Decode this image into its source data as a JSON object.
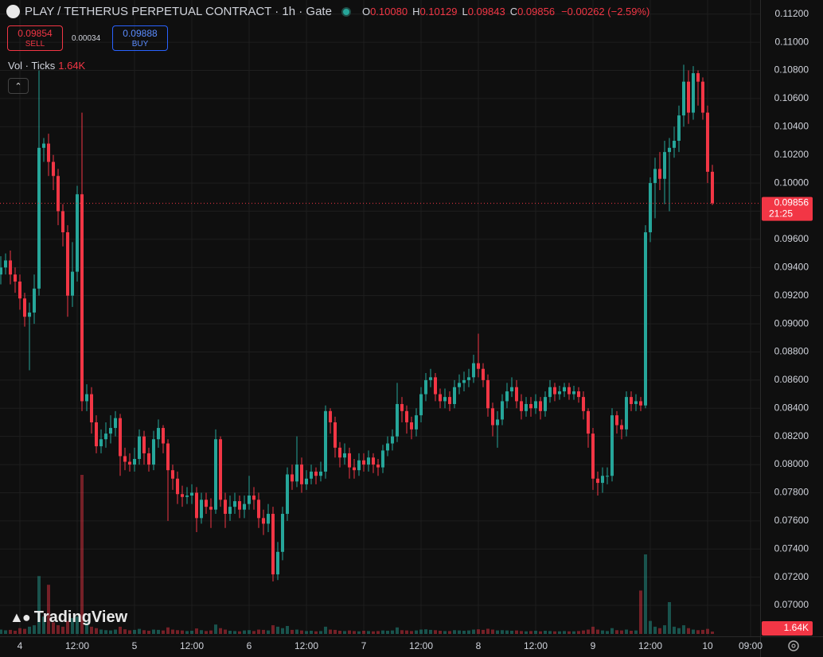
{
  "header": {
    "symbol": "PLAY / TETHERUS PERPETUAL CONTRACT · 1h · Gate",
    "ohlc": [
      {
        "key": "O",
        "value": "0.10080"
      },
      {
        "key": "H",
        "value": "0.10129"
      },
      {
        "key": "L",
        "value": "0.09843"
      },
      {
        "key": "C",
        "value": "0.09856"
      }
    ],
    "change": "−0.00262 (−2.59%)"
  },
  "trade": {
    "sell_price": "0.09854",
    "sell": "SELL",
    "spread": "0.00034",
    "buy_price": "0.09888",
    "buy": "BUY"
  },
  "volume_legend": {
    "name": "Vol · Ticks",
    "value": "1.64K"
  },
  "watermark": "TradingView",
  "chart_data": {
    "type": "candlestick",
    "categories": [
      null,
      null,
      null,
      null,
      "4",
      null,
      null,
      null,
      null,
      null,
      null,
      null,
      null,
      null,
      null,
      null,
      "12:00",
      null,
      null,
      null,
      null,
      null,
      null,
      null,
      null,
      null,
      null,
      null,
      "5",
      null,
      null,
      null,
      null,
      null,
      null,
      null,
      null,
      null,
      null,
      null,
      "12:00",
      null,
      null,
      null,
      null,
      null,
      null,
      null,
      null,
      null,
      null,
      null,
      "6",
      null,
      null,
      null,
      null,
      null,
      null,
      null,
      null,
      null,
      null,
      null,
      "12:00",
      null,
      null,
      null,
      null,
      null,
      null,
      null,
      null,
      null,
      null,
      null,
      "7",
      null,
      null,
      null,
      null,
      null,
      null,
      null,
      null,
      null,
      null,
      null,
      "12:00",
      null,
      null,
      null,
      null,
      null,
      null,
      null,
      null,
      null,
      null,
      null,
      "8",
      null,
      null,
      null,
      null,
      null,
      null,
      null,
      null,
      null,
      null,
      null,
      "12:00",
      null,
      null,
      null,
      null,
      null,
      null,
      null,
      null,
      null,
      null,
      null,
      "9",
      null,
      null,
      null,
      null,
      null,
      null,
      null,
      null,
      null,
      null,
      null,
      "12:00",
      null,
      null,
      null,
      null,
      null,
      null,
      null,
      null,
      null,
      null,
      null,
      "10",
      null,
      null,
      null,
      null,
      null,
      null,
      null,
      null,
      "09:00"
    ],
    "open": [
      0.0935,
      0.094,
      0.0945,
      0.0935,
      0.093,
      0.0918,
      0.0905,
      0.0908,
      0.0925,
      0.1025,
      0.1028,
      0.1015,
      0.1005,
      0.098,
      0.0965,
      0.092,
      0.0937,
      0.0992,
      0.0845,
      0.085,
      0.083,
      0.0813,
      0.0818,
      0.0822,
      0.0826,
      0.0833,
      0.0806,
      0.0802,
      0.08,
      0.0804,
      0.082,
      0.0808,
      0.08,
      0.0818,
      0.0826,
      0.0815,
      0.0796,
      0.079,
      0.0779,
      0.0777,
      0.0778,
      0.078,
      0.0762,
      0.0775,
      0.077,
      0.0768,
      0.0818,
      0.0775,
      0.0765,
      0.077,
      0.0774,
      0.0768,
      0.0772,
      0.0778,
      0.0775,
      0.0762,
      0.0758,
      0.0765,
      0.0722,
      0.0738,
      0.0765,
      0.0793,
      0.0788,
      0.08,
      0.0786,
      0.079,
      0.0795,
      0.0792,
      0.0795,
      0.0838,
      0.083,
      0.0812,
      0.0805,
      0.0808,
      0.0798,
      0.0796,
      0.0803,
      0.08,
      0.0805,
      0.08,
      0.0798,
      0.081,
      0.0815,
      0.082,
      0.0843,
      0.0838,
      0.083,
      0.0825,
      0.0835,
      0.085,
      0.086,
      0.0862,
      0.085,
      0.0845,
      0.0848,
      0.0843,
      0.0855,
      0.0858,
      0.086,
      0.0862,
      0.0872,
      0.0868,
      0.086,
      0.084,
      0.0828,
      0.0832,
      0.0845,
      0.0852,
      0.0855,
      0.0845,
      0.0838,
      0.0843,
      0.084,
      0.0845,
      0.0838,
      0.0848,
      0.0855,
      0.085,
      0.0852,
      0.0855,
      0.085,
      0.0852,
      0.0848,
      0.0838,
      0.0822,
      0.079,
      0.0787,
      0.0792,
      0.0792,
      0.0835,
      0.0828,
      0.0825,
      0.0848,
      0.0843,
      0.0845,
      0.0842,
      0.0965,
      0.1,
      0.101,
      0.1003,
      0.1022,
      0.1025,
      0.103,
      0.1048,
      0.1072,
      0.105,
      0.1078,
      0.1072,
      0.105,
      0.1008,
      null,
      null,
      null,
      null,
      null,
      null,
      null,
      null
    ],
    "high": [
      0.0948,
      0.095,
      0.0952,
      0.094,
      0.0935,
      0.0922,
      0.0915,
      0.0935,
      0.108,
      0.1032,
      0.1035,
      0.102,
      0.101,
      0.0985,
      0.097,
      0.0958,
      0.0998,
      0.105,
      0.0857,
      0.0855,
      0.0835,
      0.0825,
      0.083,
      0.0835,
      0.0838,
      0.0836,
      0.0812,
      0.0808,
      0.0812,
      0.0825,
      0.0824,
      0.0812,
      0.0824,
      0.0832,
      0.0828,
      0.0818,
      0.08,
      0.0795,
      0.0785,
      0.0784,
      0.0786,
      0.0784,
      0.078,
      0.078,
      0.0776,
      0.0825,
      0.082,
      0.078,
      0.0778,
      0.078,
      0.0778,
      0.0778,
      0.0792,
      0.0784,
      0.078,
      0.0768,
      0.0772,
      0.077,
      0.0745,
      0.077,
      0.0798,
      0.08,
      0.082,
      0.0805,
      0.0796,
      0.08,
      0.0798,
      0.0802,
      0.0842,
      0.084,
      0.0834,
      0.0816,
      0.0815,
      0.0812,
      0.0804,
      0.0808,
      0.0808,
      0.081,
      0.0808,
      0.0804,
      0.0814,
      0.082,
      0.0825,
      0.0858,
      0.0848,
      0.0842,
      0.0834,
      0.084,
      0.0855,
      0.0865,
      0.0868,
      0.0865,
      0.0854,
      0.0854,
      0.0852,
      0.086,
      0.0864,
      0.0866,
      0.0868,
      0.0878,
      0.0893,
      0.0872,
      0.0864,
      0.0844,
      0.0838,
      0.085,
      0.0858,
      0.0862,
      0.086,
      0.085,
      0.0848,
      0.0848,
      0.085,
      0.0848,
      0.0852,
      0.086,
      0.0858,
      0.0856,
      0.0858,
      0.0858,
      0.0856,
      0.0855,
      0.0852,
      0.084,
      0.0826,
      0.0795,
      0.0798,
      0.0798,
      0.084,
      0.0838,
      0.0832,
      0.0852,
      0.0852,
      0.085,
      0.0848,
      0.097,
      0.1004,
      0.1018,
      0.1022,
      0.103,
      0.1032,
      0.104,
      0.1055,
      0.1084,
      0.108,
      0.1083,
      0.108,
      0.1075,
      0.1055,
      0.10129,
      null,
      null,
      null,
      null,
      null,
      null,
      null,
      null
    ],
    "low": [
      0.0928,
      0.0935,
      0.0928,
      0.0922,
      0.091,
      0.0898,
      0.0867,
      0.09,
      0.092,
      0.1015,
      0.1005,
      0.0995,
      0.097,
      0.0955,
      0.0905,
      0.0912,
      0.093,
      0.0838,
      0.0838,
      0.0822,
      0.0808,
      0.0808,
      0.0812,
      0.0815,
      0.082,
      0.0792,
      0.0796,
      0.0795,
      0.0795,
      0.08,
      0.08,
      0.0795,
      0.0796,
      0.0812,
      0.0808,
      0.076,
      0.0782,
      0.0772,
      0.077,
      0.0772,
      0.0772,
      0.0752,
      0.0758,
      0.0765,
      0.0755,
      0.0765,
      0.077,
      0.0755,
      0.076,
      0.0765,
      0.0762,
      0.0762,
      0.0768,
      0.0768,
      0.0755,
      0.075,
      0.0752,
      0.0717,
      0.0718,
      0.0732,
      0.076,
      0.0782,
      0.0784,
      0.078,
      0.0782,
      0.0786,
      0.0786,
      0.0788,
      0.079,
      0.0822,
      0.0805,
      0.0798,
      0.08,
      0.079,
      0.079,
      0.0792,
      0.0795,
      0.0795,
      0.0794,
      0.0792,
      0.0794,
      0.0806,
      0.081,
      0.0816,
      0.083,
      0.0822,
      0.0818,
      0.082,
      0.083,
      0.0845,
      0.0855,
      0.0845,
      0.084,
      0.084,
      0.0838,
      0.084,
      0.085,
      0.0852,
      0.0855,
      0.0858,
      0.0862,
      0.0855,
      0.0834,
      0.082,
      0.0812,
      0.0828,
      0.084,
      0.0848,
      0.084,
      0.0832,
      0.0834,
      0.0834,
      0.0836,
      0.0832,
      0.0834,
      0.0844,
      0.0845,
      0.0846,
      0.0848,
      0.0846,
      0.0846,
      0.0844,
      0.0832,
      0.0812,
      0.0782,
      0.0778,
      0.078,
      0.0786,
      0.0788,
      0.0822,
      0.0818,
      0.082,
      0.0838,
      0.0838,
      0.0838,
      0.084,
      0.0958,
      0.0975,
      0.0995,
      0.0985,
      0.098,
      0.1018,
      0.1022,
      0.104,
      0.1042,
      0.1045,
      0.1055,
      0.1045,
      0.1,
      0.09843,
      null,
      null,
      null,
      null,
      null,
      null,
      null,
      null
    ],
    "close": [
      0.094,
      0.0945,
      0.0935,
      0.093,
      0.0918,
      0.0905,
      0.0908,
      0.0925,
      0.1025,
      0.1028,
      0.1015,
      0.1005,
      0.098,
      0.0965,
      0.092,
      0.0937,
      0.0992,
      0.0845,
      0.085,
      0.083,
      0.0813,
      0.0818,
      0.0822,
      0.0826,
      0.0833,
      0.0806,
      0.0802,
      0.08,
      0.0804,
      0.082,
      0.0808,
      0.08,
      0.0818,
      0.0826,
      0.0815,
      0.0796,
      0.079,
      0.0779,
      0.0777,
      0.0778,
      0.078,
      0.0762,
      0.0775,
      0.077,
      0.0768,
      0.0818,
      0.0775,
      0.0765,
      0.077,
      0.0774,
      0.0768,
      0.0772,
      0.0778,
      0.0775,
      0.0762,
      0.0758,
      0.0765,
      0.0722,
      0.0738,
      0.0765,
      0.0793,
      0.0788,
      0.08,
      0.0786,
      0.079,
      0.0795,
      0.0792,
      0.0795,
      0.0838,
      0.083,
      0.0812,
      0.0805,
      0.0808,
      0.0798,
      0.0796,
      0.0803,
      0.08,
      0.0805,
      0.08,
      0.0798,
      0.081,
      0.0815,
      0.082,
      0.0843,
      0.0838,
      0.083,
      0.0825,
      0.0835,
      0.085,
      0.086,
      0.0862,
      0.085,
      0.0845,
      0.0848,
      0.0843,
      0.0855,
      0.0858,
      0.086,
      0.0862,
      0.0872,
      0.0868,
      0.086,
      0.084,
      0.0828,
      0.0832,
      0.0845,
      0.0852,
      0.0855,
      0.0845,
      0.0838,
      0.0843,
      0.084,
      0.0845,
      0.0838,
      0.0848,
      0.0855,
      0.085,
      0.0852,
      0.0855,
      0.085,
      0.0852,
      0.0848,
      0.0838,
      0.0822,
      0.079,
      0.0787,
      0.0792,
      0.0792,
      0.0835,
      0.0828,
      0.0825,
      0.0848,
      0.0843,
      0.0845,
      0.0842,
      0.0965,
      0.1,
      0.101,
      0.1003,
      0.1022,
      0.1025,
      0.103,
      0.1048,
      0.1072,
      0.105,
      0.1078,
      0.1072,
      0.105,
      0.1008,
      0.09856,
      null,
      null,
      null,
      null,
      null,
      null,
      null,
      null
    ],
    "volume": [
      3000,
      2500,
      2800,
      2200,
      4000,
      3500,
      5000,
      6000,
      40000,
      12000,
      34000,
      8000,
      6000,
      5000,
      9000,
      11000,
      12000,
      110000,
      8000,
      5000,
      4000,
      3000,
      2600,
      2400,
      3000,
      5000,
      3200,
      2500,
      2800,
      3500,
      2600,
      2200,
      3000,
      2800,
      2400,
      4500,
      3000,
      2600,
      2400,
      2000,
      2200,
      3800,
      2600,
      2000,
      2400,
      6500,
      4000,
      3000,
      2200,
      2000,
      1800,
      2400,
      2600,
      2000,
      3000,
      2800,
      2400,
      6000,
      5000,
      4000,
      5500,
      2800,
      3000,
      2400,
      2000,
      2200,
      1800,
      2000,
      5000,
      3000,
      2800,
      2200,
      2000,
      2400,
      2000,
      1800,
      2200,
      2000,
      1800,
      2000,
      2400,
      2200,
      2400,
      4500,
      2600,
      2400,
      2000,
      2400,
      3000,
      3200,
      2800,
      2600,
      2200,
      2000,
      2000,
      2600,
      2400,
      2200,
      2400,
      3000,
      3200,
      2800,
      3600,
      3000,
      2400,
      2600,
      2400,
      2200,
      2400,
      2000,
      1800,
      2000,
      2200,
      1800,
      2200,
      2000,
      1800,
      1800,
      2000,
      1800,
      1800,
      2000,
      2400,
      3000,
      5000,
      3000,
      2400,
      2000,
      4000,
      2600,
      2400,
      3000,
      2200,
      2400,
      30000,
      55000,
      9000,
      5000,
      4000,
      6000,
      22000,
      5000,
      4000,
      6000,
      4000,
      3000,
      2600,
      2800,
      3500,
      1640,
      null,
      null,
      null,
      null,
      null,
      null,
      null,
      null
    ],
    "volume_value_label": "1.64K",
    "last_price_label": "0.09856",
    "countdown": "21:25",
    "ylim": [
      0.0678,
      0.113
    ],
    "yticks": [
      {
        "value": 0.112,
        "label": "0.11200"
      },
      {
        "value": 0.11,
        "label": "0.11000"
      },
      {
        "value": 0.108,
        "label": "0.10800"
      },
      {
        "value": 0.106,
        "label": "0.10600"
      },
      {
        "value": 0.104,
        "label": "0.10400"
      },
      {
        "value": 0.102,
        "label": "0.10200"
      },
      {
        "value": 0.1,
        "label": "0.10000"
      },
      {
        "value": 0.098,
        "label": "0.09800"
      },
      {
        "value": 0.096,
        "label": "0.09600"
      },
      {
        "value": 0.094,
        "label": "0.09400"
      },
      {
        "value": 0.092,
        "label": "0.09200"
      },
      {
        "value": 0.09,
        "label": "0.09000"
      },
      {
        "value": 0.088,
        "label": "0.08800"
      },
      {
        "value": 0.086,
        "label": "0.08600"
      },
      {
        "value": 0.084,
        "label": "0.08400"
      },
      {
        "value": 0.082,
        "label": "0.08200"
      },
      {
        "value": 0.08,
        "label": "0.08000"
      },
      {
        "value": 0.078,
        "label": "0.07800"
      },
      {
        "value": 0.076,
        "label": "0.07600"
      },
      {
        "value": 0.074,
        "label": "0.07400"
      },
      {
        "value": 0.072,
        "label": "0.07200"
      },
      {
        "value": 0.07,
        "label": "0.07000"
      }
    ],
    "up_color": "#26a69a",
    "down_color": "#f23645",
    "grid": true
  }
}
